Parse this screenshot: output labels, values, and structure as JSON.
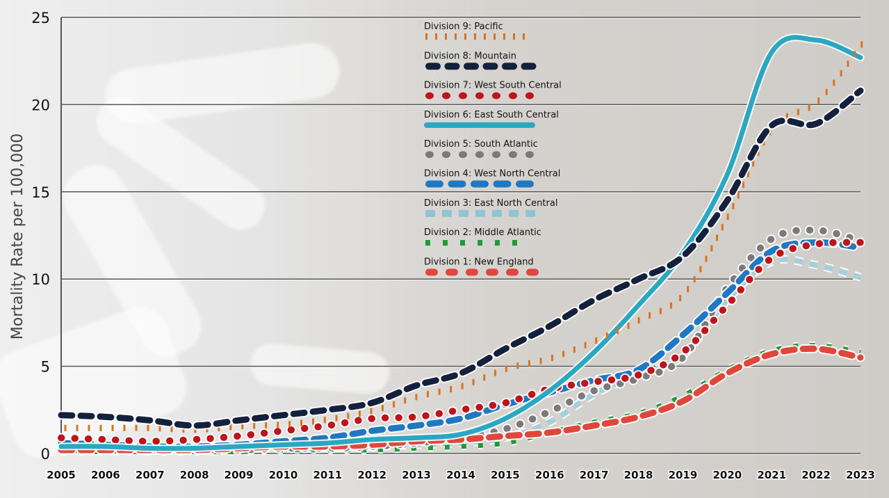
{
  "chart_data": {
    "type": "line",
    "title": "",
    "xlabel": "",
    "ylabel": "Mortality Rate per 100,000",
    "ylim": [
      0,
      25
    ],
    "yticks": [
      0,
      5,
      10,
      15,
      20,
      25
    ],
    "grid": "horizontal",
    "legend_position": "top-center inside plot",
    "x": [
      2005,
      2006,
      2007,
      2008,
      2009,
      2010,
      2011,
      2012,
      2013,
      2014,
      2015,
      2016,
      2017,
      2018,
      2019,
      2020,
      2021,
      2022,
      2023
    ],
    "series": [
      {
        "name": "Division 9: Pacific",
        "color": "#d9731f",
        "style": "ticks",
        "values": [
          1.8,
          1.8,
          1.8,
          1.7,
          1.9,
          2.0,
          2.3,
          2.8,
          3.6,
          4.2,
          5.2,
          5.8,
          6.8,
          8.0,
          9.5,
          14.0,
          19.0,
          20.5,
          23.8
        ]
      },
      {
        "name": "Division 8: Mountain",
        "color": "#14213d",
        "style": "dash",
        "values": [
          2.2,
          2.1,
          1.9,
          1.6,
          1.9,
          2.2,
          2.5,
          2.9,
          3.9,
          4.6,
          6.0,
          7.3,
          8.8,
          10.0,
          11.3,
          14.5,
          18.8,
          18.9,
          20.8
        ]
      },
      {
        "name": "Division 7: West South Central",
        "color": "#c0141c",
        "style": "dots",
        "values": [
          0.9,
          0.8,
          0.7,
          0.8,
          1.0,
          1.3,
          1.6,
          2.0,
          2.1,
          2.5,
          2.9,
          3.7,
          4.1,
          4.5,
          5.8,
          8.5,
          11.2,
          12.0,
          12.1
        ]
      },
      {
        "name": "Division 6: East South Central",
        "color": "#2aa7c2",
        "style": "solid",
        "values": [
          0.4,
          0.4,
          0.3,
          0.3,
          0.4,
          0.5,
          0.6,
          0.8,
          0.9,
          1.1,
          2.0,
          3.6,
          5.8,
          8.5,
          11.5,
          16.0,
          23.0,
          23.7,
          22.7
        ]
      },
      {
        "name": "Division 5: South Atlantic",
        "color": "#7a7a7a",
        "style": "dots",
        "values": [
          0.2,
          0.2,
          0.2,
          0.2,
          0.2,
          0.3,
          0.3,
          0.4,
          0.6,
          0.9,
          1.4,
          2.4,
          3.6,
          4.3,
          5.5,
          9.5,
          12.3,
          12.8,
          12.2
        ]
      },
      {
        "name": "Division 4: West North Central",
        "color": "#1f78c1",
        "style": "dash",
        "values": [
          0.6,
          0.5,
          0.4,
          0.4,
          0.5,
          0.7,
          0.9,
          1.3,
          1.6,
          2.0,
          2.8,
          3.5,
          4.2,
          4.8,
          6.8,
          9.2,
          11.6,
          12.1,
          11.8
        ]
      },
      {
        "name": "Division 3: East North Central",
        "color": "#8ec4d4",
        "style": "square-dash",
        "values": [
          0.2,
          0.2,
          0.2,
          0.2,
          0.3,
          0.3,
          0.3,
          0.4,
          0.5,
          0.6,
          0.9,
          1.8,
          3.4,
          4.5,
          5.6,
          8.8,
          11.0,
          10.8,
          10.1
        ]
      },
      {
        "name": "Division 2: Middle Atlantic",
        "color": "#1e9a3a",
        "style": "squares",
        "values": [
          0.1,
          0.1,
          0.1,
          0.1,
          0.1,
          0.2,
          0.2,
          0.2,
          0.3,
          0.4,
          0.6,
          1.2,
          1.8,
          2.3,
          3.3,
          4.8,
          5.9,
          6.2,
          5.8
        ]
      },
      {
        "name": "Division 1: New England",
        "color": "#e0473c",
        "style": "dash",
        "values": [
          0.2,
          0.2,
          0.2,
          0.2,
          0.3,
          0.4,
          0.4,
          0.5,
          0.7,
          0.8,
          1.0,
          1.2,
          1.6,
          2.1,
          3.0,
          4.6,
          5.7,
          6.0,
          5.5
        ]
      }
    ]
  }
}
